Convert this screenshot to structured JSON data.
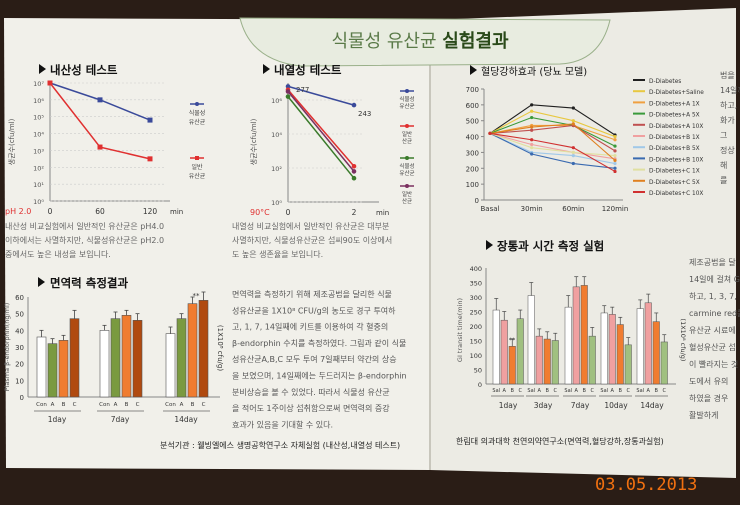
{
  "header": {
    "title_main": "식물성 유산균",
    "title_bold": "실험결과"
  },
  "panel_acid": {
    "title": "내산성 테스트",
    "ylabel": "생균수(cfu/ml)",
    "yticks": [
      "10⁷",
      "10⁶",
      "10⁵",
      "10⁴",
      "10³",
      "10²",
      "10¹",
      "10⁰"
    ],
    "xticks": [
      "0",
      "60",
      "120"
    ],
    "x_unit": "min",
    "condition": "pH 2.0",
    "legend": [
      "식물성 유산균",
      "일반 유산균"
    ],
    "body": [
      "내산성 비교실험에서 일반적인 유산균은 pH4.0",
      "이하에서는 사멸하지만, 식물성유산균은 pH2.0",
      "중에서도 높은 내성을 보입니다."
    ]
  },
  "panel_heat": {
    "title": "내열성 테스트",
    "ylabel": "생균수(cfu/ml)",
    "yticks": [
      "10⁶",
      "10⁴",
      "10²",
      "10⁰"
    ],
    "xticks": [
      "0",
      "2"
    ],
    "x_unit": "min",
    "condition": "90°C",
    "label_277": "277",
    "label_243": "243",
    "legend": [
      "식물성 유산균",
      "일반 유산균",
      "식물성 유산균",
      "일반 유산균"
    ],
    "body": [
      "내열성 비교실험에서 일반적인 유산균은 대부분",
      "사멸하지만, 식물성유산균은 섭씨90도 이상에서",
      "도 높은 생존율을 보입니다."
    ]
  },
  "panel_glucose": {
    "title": "혈당강하효과 (당뇨 모델)",
    "yticks": [
      "0",
      "100",
      "200",
      "300",
      "400",
      "500",
      "600",
      "700"
    ],
    "xticks": [
      "Basal",
      "30min",
      "60min",
      "120min"
    ],
    "legend": [
      "D-Diabetes",
      "D-Diabetes+Saline",
      "D-Diabetes+A 1X",
      "D-Diabetes+A 5X",
      "D-Diabetes+A 10X",
      "D-Diabetes+B 1X",
      "D-Diabetes+B 5X",
      "D-Diabetes+B 10X",
      "D-Diabetes+C 1X",
      "D-Diabetes+C 5X",
      "D-Diabetes+C 10X"
    ]
  },
  "panel_immune": {
    "title": "면역력 측정결과",
    "ylabel": "Plasma β-endorphin(ng/ml)",
    "yticks": [
      "0",
      "10",
      "20",
      "30",
      "40",
      "50",
      "60"
    ],
    "bar_labels": [
      "Con",
      "A",
      "B",
      "C"
    ],
    "days": [
      "1day",
      "7day",
      "14day"
    ],
    "unit": "(1X10⁸ cfu/g)",
    "star": "**",
    "body": [
      "면역력을 측정하기 위해 제조공법을 달리한 식물",
      "성유산균을 1X10⁸ CFU/g의 농도로 경구 투여하",
      "고, 1, 7, 14일째에 키트를 이용하여 각 혈중의",
      "β-endorphin 수치를 측정하였다. 그림과 같이 식물",
      "성유산균A,B,C 모두 투여 7일째부터 약간의 상승",
      "을 보였으며, 14일째에는 두드러지는 β-endorphin",
      "분비상승을 볼 수 있었다. 따라서 식물성 유산균",
      "을 적어도 1주이상 섭취함으로써 면역력의 증강",
      "효과가 있음을 기대할 수 있다."
    ]
  },
  "panel_transit": {
    "title": "장통과 시간 측정 실험",
    "ylabel": "GI transit time(min)",
    "yticks": [
      "0",
      "50",
      "100",
      "150",
      "200",
      "250",
      "300",
      "350",
      "400"
    ],
    "bar_labels": [
      "Sal",
      "A",
      "B",
      "C"
    ],
    "days": [
      "1day",
      "3day",
      "7day",
      "10day",
      "14day"
    ],
    "unit": "(1X10⁸ cfu/g)",
    "star": "**"
  },
  "right_edge": {
    "col1": [
      "법을",
      "14일께",
      "하고,",
      "화가",
      "그",
      "정상",
      "해",
      "를"
    ],
    "col2": [
      "제조공법을 달",
      "14일에 걸쳐 G",
      "하고, 1, 3, 7, 1",
      "carmine red를",
      "유산균 시료에",
      "혈성유산균 섭",
      "이 빨라지는 것",
      "도에서 유의",
      "하였을 경우",
      "활발하게"
    ]
  },
  "footer": {
    "left": "분석기관 : 웰빙엘에스 생명공학연구소 자체실험 (내산성,내열성 테스트)",
    "right": "한림대 의과대학 천연의약연구소(면역력,혈당강하,장통과실험)"
  },
  "stamp": "03.05.2013",
  "colors": {
    "green": "#3a7a2a",
    "blue": "#3a4a9a",
    "red": "#e03030",
    "brown": "#b04a10",
    "olive": "#7a9a40",
    "orange": "#f07c30"
  },
  "chart_data": [
    {
      "type": "line",
      "title": "내산성 테스트",
      "xlabel": "min",
      "ylabel": "생균수(cfu/ml)",
      "x": [
        0,
        60,
        120
      ],
      "yscale": "log10",
      "ylim": [
        0,
        7
      ],
      "series": [
        {
          "name": "식물성 유산균",
          "color": "#3a4a9a",
          "values": [
            7.0,
            6.0,
            4.8
          ]
        },
        {
          "name": "일반 유산균",
          "color": "#e03030",
          "values": [
            7.0,
            3.2,
            2.5
          ]
        }
      ]
    },
    {
      "type": "line",
      "title": "내열성 테스트",
      "xlabel": "min",
      "ylabel": "생균수(cfu/ml)",
      "x": [
        0,
        2
      ],
      "yscale": "log10",
      "ylim": [
        0,
        7
      ],
      "series": [
        {
          "name": "식물성 유산균",
          "color": "#3a4a9a",
          "values": [
            6.8,
            5.7
          ]
        },
        {
          "name": "일반 유산균",
          "color": "#e03030",
          "values": [
            6.6,
            2.1
          ]
        },
        {
          "name": "식물성 유산균",
          "color": "#3a7a2a",
          "values": [
            6.2,
            1.4
          ]
        },
        {
          "name": "일반 유산균",
          "color": "#7a3060",
          "values": [
            6.5,
            1.8
          ]
        }
      ]
    },
    {
      "type": "line",
      "title": "혈당강하효과 (당뇨 모델)",
      "categories": [
        "Basal",
        "30min",
        "60min",
        "120min"
      ],
      "ylim": [
        0,
        700
      ],
      "series": [
        {
          "name": "D-Diabetes",
          "color": "#202020",
          "values": [
            420,
            600,
            580,
            410
          ]
        },
        {
          "name": "D-Diabetes+Saline",
          "color": "#e8c840",
          "values": [
            420,
            560,
            500,
            400
          ]
        },
        {
          "name": "D-Diabetes+A 1X",
          "color": "#f0a040",
          "values": [
            420,
            470,
            470,
            380
          ]
        },
        {
          "name": "D-Diabetes+A 5X",
          "color": "#3a9a3a",
          "values": [
            420,
            520,
            470,
            340
          ]
        },
        {
          "name": "D-Diabetes+A 10X",
          "color": "#c05050",
          "values": [
            420,
            440,
            470,
            310
          ]
        },
        {
          "name": "D-Diabetes+B 1X",
          "color": "#f0a0a0",
          "values": [
            420,
            350,
            300,
            260
          ]
        },
        {
          "name": "D-Diabetes+B 5X",
          "color": "#a0c8e8",
          "values": [
            420,
            300,
            280,
            230
          ]
        },
        {
          "name": "D-Diabetes+B 10X",
          "color": "#3a6ab0",
          "values": [
            420,
            290,
            230,
            200
          ]
        },
        {
          "name": "D-Diabetes+C 1X",
          "color": "#e0e0a0",
          "values": [
            420,
            330,
            300,
            280
          ]
        },
        {
          "name": "D-Diabetes+C 5X",
          "color": "#e08020",
          "values": [
            420,
            460,
            480,
            250
          ]
        },
        {
          "name": "D-Diabetes+C 10X",
          "color": "#d03030",
          "values": [
            420,
            380,
            330,
            180
          ]
        }
      ]
    },
    {
      "type": "bar",
      "title": "면역력 측정결과",
      "ylabel": "Plasma β-endorphin(ng/ml)",
      "categories": [
        "1day",
        "7day",
        "14day"
      ],
      "ylim": [
        0,
        60
      ],
      "series": [
        {
          "name": "Con",
          "color": "#ffffff",
          "values": [
            36,
            40,
            38
          ],
          "err": [
            4,
            3,
            4
          ]
        },
        {
          "name": "A",
          "color": "#7a9a40",
          "values": [
            32,
            47,
            47
          ],
          "err": [
            3,
            4,
            3
          ]
        },
        {
          "name": "B",
          "color": "#f07c30",
          "values": [
            34,
            49,
            56
          ],
          "err": [
            3,
            3,
            4
          ]
        },
        {
          "name": "C",
          "color": "#b04a10",
          "values": [
            47,
            46,
            58
          ],
          "err": [
            5,
            4,
            5
          ]
        }
      ]
    },
    {
      "type": "bar",
      "title": "장통과 시간 측정 실험",
      "ylabel": "GI transit time(min)",
      "categories": [
        "1day",
        "3day",
        "7day",
        "10day",
        "14day"
      ],
      "ylim": [
        0,
        400
      ],
      "series": [
        {
          "name": "Sal",
          "color": "#ffffff",
          "values": [
            255,
            305,
            265,
            245,
            260
          ],
          "err": [
            40,
            45,
            40,
            25,
            30
          ]
        },
        {
          "name": "A",
          "color": "#f0a0a0",
          "values": [
            220,
            165,
            335,
            240,
            280
          ],
          "err": [
            30,
            25,
            35,
            25,
            30
          ]
        },
        {
          "name": "B",
          "color": "#f07c30",
          "values": [
            130,
            155,
            340,
            205,
            215
          ],
          "err": [
            25,
            25,
            30,
            25,
            30
          ]
        },
        {
          "name": "C",
          "color": "#a0c080",
          "values": [
            225,
            150,
            165,
            135,
            145
          ],
          "err": [
            30,
            25,
            30,
            25,
            25
          ]
        }
      ]
    }
  ]
}
